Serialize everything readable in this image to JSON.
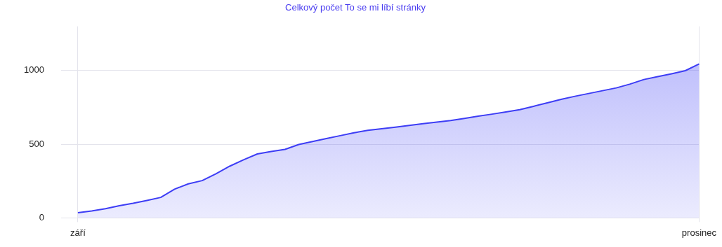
{
  "chart_data": {
    "type": "area",
    "title": "Celkový počet To se mi líbí stránky",
    "categories": [
      "září",
      null,
      null,
      null,
      null,
      null,
      null,
      null,
      null,
      null,
      null,
      null,
      null,
      null,
      null,
      null,
      null,
      null,
      null,
      null,
      null,
      null,
      null,
      null,
      null,
      null,
      null,
      null,
      null,
      null,
      null,
      null,
      null,
      null,
      null,
      null,
      null,
      null,
      null,
      null,
      null,
      null,
      null,
      null,
      null,
      "prosinec"
    ],
    "series": [
      {
        "color": "#3d3df5",
        "values": [
          35,
          47,
          62,
          83,
          99,
          118,
          139,
          195,
          231,
          253,
          299,
          351,
          394,
          434,
          451,
          465,
          498,
          518,
          538,
          558,
          578,
          594,
          605,
          616,
          627,
          639,
          650,
          661,
          675,
          690,
          704,
          719,
          734,
          757,
          781,
          804,
          825,
          844,
          863,
          882,
          908,
          939,
          959,
          978,
          999,
          1045
        ]
      }
    ],
    "ylim": [
      0,
      1300
    ],
    "yticks": [
      0,
      500,
      1000
    ],
    "grid": true,
    "legend": false,
    "marker": "none",
    "line_style": "solid"
  }
}
